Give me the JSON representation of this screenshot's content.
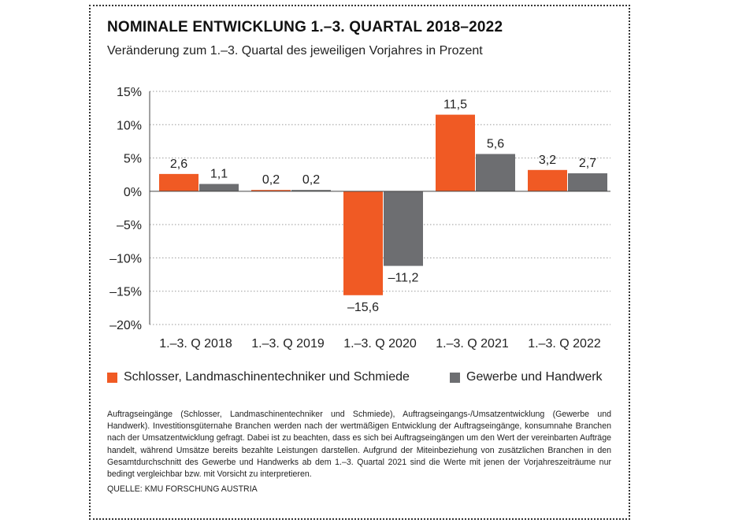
{
  "title": "NOMINALE ENTWICKLUNG 1.–3. QUARTAL 2018–2022",
  "subtitle": "Veränderung zum 1.–3. Quartal des jeweiligen Vorjahres in Prozent",
  "legend": {
    "series_a": "Schlosser, Landmaschinentechniker und Schmiede",
    "series_b": "Gewerbe und Handwerk"
  },
  "colors": {
    "series_a": "#f05a24",
    "series_b": "#6d6e71"
  },
  "note": "Auftragseingänge (Schlosser, Landmaschinentechniker und Schmiede), Auftragseingangs-/Umsatzentwicklung (Gewerbe und Handwerk). Investitionsgüternahe Branchen werden nach der wertmäßigen Entwicklung der Auftragseingänge, konsumnahe Branchen nach der Umsatzentwicklung gefragt. Dabei ist zu beachten, dass es sich bei Auftragseingängen um den Wert der vereinbarten Aufträge handelt, während Umsätze bereits bezahlte Leistungen darstellen. Aufgrund der Miteinbeziehung von zusätzlichen Branchen in den Gesamtdurchschnitt des Gewerbe und Handwerks ab dem 1.–3. Quartal 2021 sind die Werte mit jenen der Vorjahreszeiträume nur bedingt vergleichbar bzw. mit Vorsicht zu interpretieren.",
  "source": "QUELLE: KMU FORSCHUNG AUSTRIA",
  "chart_data": {
    "type": "bar",
    "categories": [
      "1.–3. Q 2018",
      "1.–3. Q 2019",
      "1.–3. Q 2020",
      "1.–3. Q 2021",
      "1.–3. Q 2022"
    ],
    "series": [
      {
        "name": "Schlosser, Landmaschinentechniker und Schmiede",
        "values": [
          2.6,
          0.2,
          -15.6,
          11.5,
          3.2
        ],
        "labels": [
          "2,6",
          "0,2",
          "–15,6",
          "11,5",
          "3,2"
        ]
      },
      {
        "name": "Gewerbe und Handwerk",
        "values": [
          1.1,
          0.2,
          -11.2,
          5.6,
          2.7
        ],
        "labels": [
          "1,1",
          "0,2",
          "–11,2",
          "5,6",
          "2,7"
        ]
      }
    ],
    "ylim": [
      -20,
      15
    ],
    "yticks": [
      15,
      10,
      5,
      0,
      -5,
      -10,
      -15,
      -20
    ],
    "ytick_labels": [
      "15%",
      "10%",
      "5%",
      "0%",
      "–5%",
      "–10%",
      "–15%",
      "–20%"
    ],
    "grid": true,
    "title": "NOMINALE ENTWICKLUNG 1.–3. QUARTAL 2018–2022",
    "xlabel": "",
    "ylabel": ""
  }
}
